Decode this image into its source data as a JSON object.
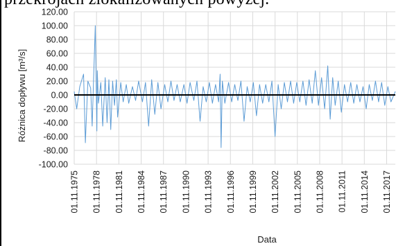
{
  "context_text": "przekrojach zlokalizowanych powyżej.",
  "chart_data": {
    "type": "line",
    "title": "",
    "xlabel": "Data",
    "ylabel": "Różnica dopływu [m³/s]",
    "ylim": [
      -100,
      120
    ],
    "ytick_labels": [
      "120.00",
      "100.00",
      "80.00",
      "60.00",
      "40.00",
      "20.00",
      "0.00",
      "-20.00",
      "-40.00",
      "-60.00",
      "-80.00",
      "-100.00"
    ],
    "xtick_labels": [
      "01.11.1975",
      "01.11.1978",
      "01.11.1981",
      "01.11.1984",
      "01.11.1987",
      "01.11.1990",
      "01.11.1993",
      "01.11.1996",
      "01.11.1999",
      "01.11.2002",
      "01.11.2005",
      "01.11.2008",
      "01.11.2011",
      "01.11.2014",
      "01.11.2017"
    ],
    "x_start": "1975-11-01",
    "x_end": "2018-12-31",
    "grid": true,
    "colors": {
      "series": "#5b9bd5",
      "zero_line": "#000000",
      "grid": "#d9d9d9"
    },
    "series": [
      {
        "x": [
          "1975-11-01",
          "1976-03-01",
          "1976-08-01",
          "1977-02-01",
          "1977-05-01",
          "1977-09-01",
          "1978-01-15",
          "1978-04-01",
          "1978-06-01",
          "1978-09-01",
          "1978-11-20",
          "1978-12-10",
          "1979-02-01",
          "1979-06-01",
          "1979-09-01",
          "1980-01-01",
          "1980-04-01",
          "1980-07-01",
          "1980-10-01",
          "1981-01-01",
          "1981-04-01",
          "1981-07-01",
          "1981-09-01",
          "1982-02-01",
          "1982-06-01",
          "1982-11-01",
          "1983-03-01",
          "1983-09-01",
          "1984-02-01",
          "1984-07-01",
          "1985-01-01",
          "1985-06-01",
          "1985-11-01",
          "1986-04-01",
          "1986-09-01",
          "1987-02-01",
          "1987-07-01",
          "1988-01-01",
          "1988-06-01",
          "1988-11-01",
          "1989-04-01",
          "1989-09-01",
          "1990-02-01",
          "1990-08-01",
          "1991-01-01",
          "1991-06-01",
          "1991-12-01",
          "1992-05-01",
          "1992-10-01",
          "1993-03-01",
          "1993-08-01",
          "1994-01-01",
          "1994-06-01",
          "1994-11-01",
          "1995-04-01",
          "1995-06-15",
          "1995-08-01",
          "1995-10-01",
          "1996-02-01",
          "1996-08-01",
          "1997-01-01",
          "1997-06-01",
          "1997-11-01",
          "1998-04-01",
          "1998-09-01",
          "1999-02-01",
          "1999-07-01",
          "1999-12-01",
          "2000-05-01",
          "2000-10-01",
          "2001-03-01",
          "2001-08-01",
          "2002-01-01",
          "2002-06-01",
          "2002-11-01",
          "2003-04-01",
          "2003-09-01",
          "2004-02-01",
          "2004-07-01",
          "2004-12-01",
          "2005-05-01",
          "2005-10-01",
          "2006-03-01",
          "2006-08-01",
          "2007-01-01",
          "2007-06-01",
          "2007-11-01",
          "2008-04-01",
          "2008-09-01",
          "2009-02-01",
          "2009-07-01",
          "2009-12-01",
          "2010-04-01",
          "2010-08-01",
          "2010-12-01",
          "2011-05-01",
          "2011-10-01",
          "2012-03-01",
          "2012-08-01",
          "2013-01-01",
          "2013-06-01",
          "2013-11-01",
          "2014-04-01",
          "2014-09-01",
          "2015-02-01",
          "2015-07-01",
          "2015-12-01",
          "2016-05-01",
          "2016-10-01",
          "2017-03-01",
          "2017-08-01",
          "2018-01-01",
          "2018-06-01",
          "2018-12-31"
        ],
        "y": [
          5,
          -20,
          12,
          30,
          -69,
          20,
          10,
          -45,
          15,
          100,
          -52,
          35,
          -12,
          18,
          -45,
          25,
          -40,
          22,
          -50,
          20,
          -15,
          22,
          -32,
          18,
          -10,
          15,
          -12,
          12,
          -8,
          20,
          -10,
          18,
          -45,
          22,
          -28,
          18,
          -20,
          15,
          -10,
          20,
          -8,
          15,
          -10,
          15,
          -12,
          18,
          -8,
          20,
          -38,
          12,
          -10,
          18,
          -12,
          15,
          -10,
          30,
          -76,
          20,
          -12,
          18,
          -10,
          15,
          -8,
          20,
          -38,
          12,
          -10,
          18,
          -30,
          15,
          -12,
          15,
          -10,
          20,
          -60,
          15,
          -20,
          18,
          -10,
          20,
          -12,
          18,
          -10,
          20,
          -15,
          22,
          -12,
          35,
          -15,
          25,
          -20,
          42,
          -35,
          25,
          -15,
          20,
          -25,
          15,
          -10,
          18,
          -12,
          15,
          -10,
          12,
          -20,
          15,
          -8,
          20,
          -10,
          18,
          -15,
          12,
          -10,
          5
        ]
      }
    ]
  }
}
